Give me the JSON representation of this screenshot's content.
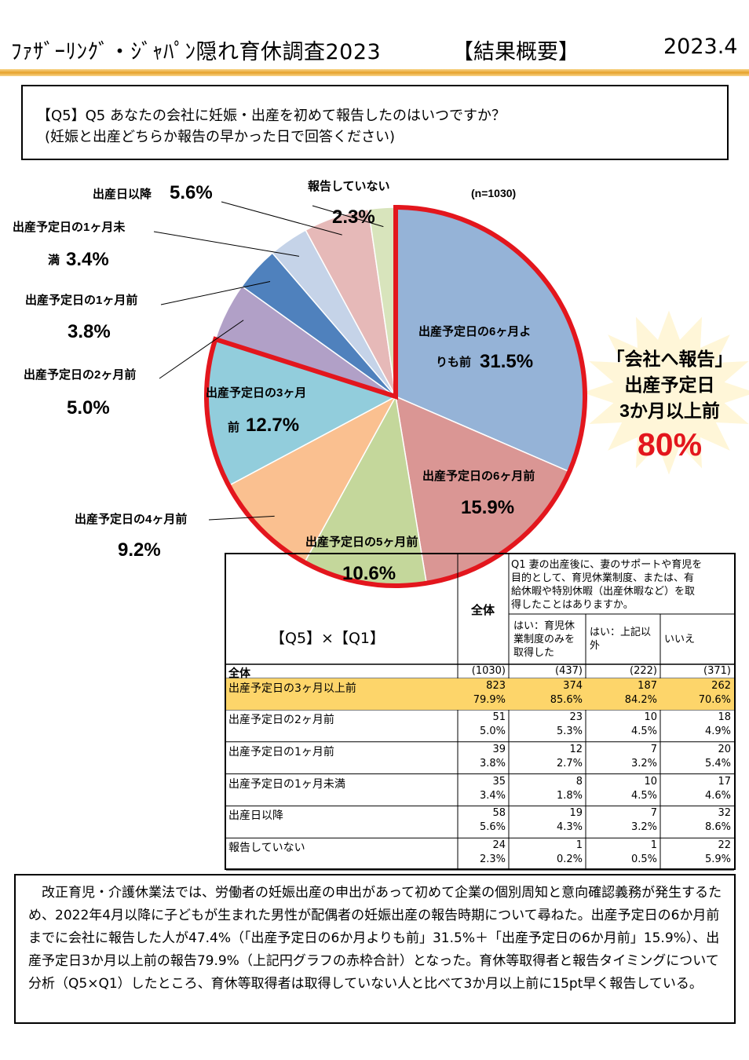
{
  "header": {
    "title": "ﾌｧｻﾞｰﾘﾝｸﾞ・ｼﾞｬﾊﾟﾝ隠れ育休調査2023",
    "summary": "【結果概要】",
    "date": "2023.4"
  },
  "question": {
    "line1": "【Q5】Q5 あなたの会社に妊娠・出産を初めて報告したのはいつですか？",
    "line2": "(妊娠と出産どちらか報告の早かった日で回答ください)"
  },
  "chart_data": {
    "type": "pie",
    "n_label": "(n=1030)",
    "slices": [
      {
        "label": "出産予定日の6ヶ月よりも前",
        "value": 31.5,
        "value_label": "31.5%",
        "color": "#95b3d7"
      },
      {
        "label": "出産予定日の6ヶ月前",
        "value": 15.9,
        "value_label": "15.9%",
        "color": "#da9694"
      },
      {
        "label": "出産予定日の5ヶ月前",
        "value": 10.6,
        "value_label": "10.6%",
        "color": "#c4d79b"
      },
      {
        "label": "出産予定日の4ヶ月前",
        "value": 9.2,
        "value_label": "9.2%",
        "color": "#fac090"
      },
      {
        "label": "出産予定日の3ヶ月前",
        "value": 12.7,
        "value_label": "12.7%",
        "color": "#92cddc"
      },
      {
        "label": "出産予定日の2ヶ月前",
        "value": 5.0,
        "value_label": "5.0%",
        "color": "#b1a0c7"
      },
      {
        "label": "出産予定日の1ヶ月前",
        "value": 3.8,
        "value_label": "3.8%",
        "color": "#4f81bd"
      },
      {
        "label": "出産予定日の1ヶ月未満",
        "value": 3.4,
        "value_label": "3.4%",
        "color": "#c5d3e8"
      },
      {
        "label": "出産日以降",
        "value": 5.6,
        "value_label": "5.6%",
        "color": "#e6b9b8"
      },
      {
        "label": "報告していない",
        "value": 2.3,
        "value_label": "2.3%",
        "color": "#d8e4bc"
      }
    ],
    "label_texts": {
      "s0a": "出産予定日の6ヶ月よ",
      "s0b": "りも前",
      "s1a": "出産予定日の6ヶ月前",
      "s2a": "出産予定日の5ヶ月前",
      "s3a": "出産予定日の4ヶ月前",
      "s4a": "出産予定日の3ヶ月",
      "s4b": "前",
      "s5a": "出産予定日の2ヶ月前",
      "s6a": "出産予定日の1ヶ月前",
      "s7a": "出産予定日の1ヶ月未",
      "s7b": "満",
      "s8a": "出産日以降",
      "s9a": "報告していない"
    },
    "highlight": {
      "from_slice": 0,
      "to_slice": 4,
      "color": "#e3161d"
    },
    "callout": {
      "line1": "「会社へ報告」",
      "line2": "出産予定日",
      "line3": "3か月以上前",
      "value": "80%"
    }
  },
  "crosstab": {
    "title": "【Q5】×【Q1】",
    "total_header": "全体",
    "q1_header": [
      "Q1 妻の出産後に、妻のサポートや育児を",
      "目的として、育児休業制度、または、有",
      "給休暇や特別休暇（出産休暇など）を取",
      "得したことはありますか。"
    ],
    "col_headers": [
      [
        "はい：育児休",
        "業制度のみを",
        "取得した"
      ],
      [
        "はい：上記以",
        "外"
      ],
      [
        "いいえ"
      ]
    ],
    "total_row": {
      "label": "全体",
      "values": [
        "(1030)",
        "(437)",
        "(222)",
        "(371)"
      ]
    },
    "rows": [
      {
        "label": "出産予定日の3ヶ月以上前",
        "counts": [
          "823",
          "374",
          "187",
          "262"
        ],
        "pcts": [
          "79.9%",
          "85.6%",
          "84.2%",
          "70.6%"
        ]
      },
      {
        "label": "出産予定日の2ヶ月前",
        "counts": [
          "51",
          "23",
          "10",
          "18"
        ],
        "pcts": [
          "5.0%",
          "5.3%",
          "4.5%",
          "4.9%"
        ]
      },
      {
        "label": "出産予定日の1ヶ月前",
        "counts": [
          "39",
          "12",
          "7",
          "20"
        ],
        "pcts": [
          "3.8%",
          "2.7%",
          "3.2%",
          "5.4%"
        ]
      },
      {
        "label": "出産予定日の1ヶ月未満",
        "counts": [
          "35",
          "8",
          "10",
          "17"
        ],
        "pcts": [
          "3.4%",
          "1.8%",
          "4.5%",
          "4.6%"
        ]
      },
      {
        "label": "出産日以降",
        "counts": [
          "58",
          "19",
          "7",
          "32"
        ],
        "pcts": [
          "5.6%",
          "4.3%",
          "3.2%",
          "8.6%"
        ]
      },
      {
        "label": "報告していない",
        "counts": [
          "24",
          "1",
          "1",
          "22"
        ],
        "pcts": [
          "2.3%",
          "0.2%",
          "0.5%",
          "5.9%"
        ]
      }
    ],
    "highlight_color": "#fdd56a"
  },
  "footer": {
    "text": "　改正育児・介護休業法では、労働者の妊娠出産の申出があって初めて企業の個別周知と意向確認義務が発生するため、2022年4月以降に子どもが生まれた男性が配偶者の妊娠出産の報告時期について尋ねた。出産予定日の6か月前までに会社に報告した人が47.4%（「出産予定日の6か月よりも前」31.5%＋「出産予定日の6か月前」15.9%）、出産予定日3か月以上前の報告79.9%（上記円グラフの赤枠合計）となった。育休等取得者と報告タイミングについて分析（Q5×Q1）したところ、育休等取得者は取得していない人と比べて3か月以上前に15pt早く報告している。"
  }
}
